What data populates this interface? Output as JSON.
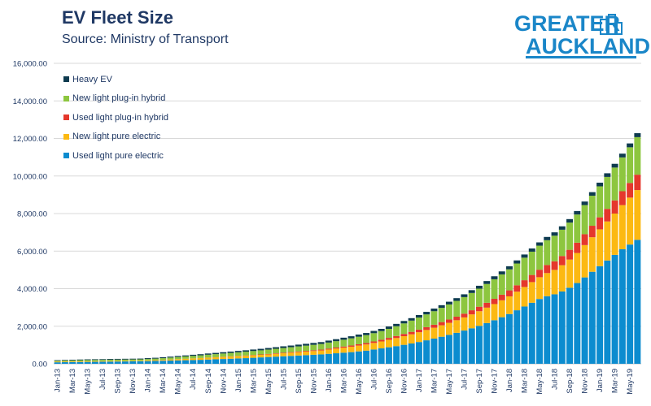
{
  "title": "EV Fleet Size",
  "subtitle": "Source: Ministry of Transport",
  "logo": {
    "line1": "GREATER",
    "line2": "AUCKLAND",
    "color": "#1a86c8"
  },
  "chart_data": {
    "type": "bar",
    "stacked": true,
    "ylim": [
      0,
      16000
    ],
    "yticks": [
      0,
      2000,
      4000,
      6000,
      8000,
      10000,
      12000,
      14000,
      16000
    ],
    "ytick_labels": [
      "0.00",
      "2,000.00",
      "4,000.00",
      "6,000.00",
      "8,000.00",
      "10,000.00",
      "12,000.00",
      "14,000.00",
      "16,000.00"
    ],
    "grid": true,
    "legend_position": "top-left",
    "categories": [
      "Jan-13",
      "Feb-13",
      "Mar-13",
      "Apr-13",
      "May-13",
      "Jun-13",
      "Jul-13",
      "Aug-13",
      "Sep-13",
      "Oct-13",
      "Nov-13",
      "Dec-13",
      "Jan-14",
      "Feb-14",
      "Mar-14",
      "Apr-14",
      "May-14",
      "Jun-14",
      "Jul-14",
      "Aug-14",
      "Sep-14",
      "Oct-14",
      "Nov-14",
      "Dec-14",
      "Jan-15",
      "Feb-15",
      "Mar-15",
      "Apr-15",
      "May-15",
      "Jun-15",
      "Jul-15",
      "Aug-15",
      "Sep-15",
      "Oct-15",
      "Nov-15",
      "Dec-15",
      "Jan-16",
      "Feb-16",
      "Mar-16",
      "Apr-16",
      "May-16",
      "Jun-16",
      "Jul-16",
      "Aug-16",
      "Sep-16",
      "Oct-16",
      "Nov-16",
      "Dec-16",
      "Jan-17",
      "Feb-17",
      "Mar-17",
      "Apr-17",
      "May-17",
      "Jun-17",
      "Jul-17",
      "Aug-17",
      "Sep-17",
      "Oct-17",
      "Nov-17",
      "Dec-17",
      "Jan-18",
      "Feb-18",
      "Mar-18",
      "Apr-18",
      "May-18",
      "Jun-18",
      "Jul-18",
      "Aug-18",
      "Sep-18",
      "Oct-18",
      "Nov-18",
      "Dec-18",
      "Jan-19",
      "Feb-19",
      "Mar-19",
      "Apr-19",
      "May-19",
      "Jun-19"
    ],
    "xtick_labels": [
      "Jan-13",
      "Mar-13",
      "May-13",
      "Jul-13",
      "Sep-13",
      "Nov-13",
      "Jan-14",
      "Mar-14",
      "May-14",
      "Jul-14",
      "Sep-14",
      "Nov-14",
      "Jan-15",
      "Mar-15",
      "May-15",
      "Jul-15",
      "Sep-15",
      "Nov-15",
      "Jan-16",
      "Mar-16",
      "May-16",
      "Jul-16",
      "Sep-16",
      "Nov-16",
      "Jan-17",
      "Mar-17",
      "May-17",
      "Jul-17",
      "Sep-17",
      "Nov-17",
      "Jan-18",
      "Mar-18",
      "May-18",
      "Jul-18",
      "Sep-18",
      "Nov-18",
      "Jan-19",
      "Mar-19",
      "May-19"
    ],
    "series": [
      {
        "name": "Used light pure electric",
        "color": "#0c8ccf",
        "values": [
          80,
          85,
          90,
          95,
          100,
          105,
          110,
          115,
          120,
          125,
          130,
          135,
          140,
          150,
          160,
          170,
          180,
          190,
          200,
          210,
          225,
          240,
          255,
          270,
          285,
          300,
          320,
          340,
          360,
          380,
          400,
          420,
          440,
          460,
          480,
          500,
          530,
          560,
          590,
          620,
          660,
          700,
          760,
          820,
          880,
          940,
          1010,
          1080,
          1160,
          1250,
          1340,
          1440,
          1540,
          1650,
          1770,
          1890,
          2020,
          2170,
          2320,
          2480,
          2650,
          2850,
          3050,
          3250,
          3450,
          3600,
          3700,
          3850,
          4050,
          4300,
          4600,
          4900,
          5200,
          5500,
          5800,
          6100,
          6350,
          6600
        ]
      },
      {
        "name": "New light pure electric",
        "color": "#fcb912",
        "values": [
          30,
          30,
          30,
          30,
          30,
          30,
          30,
          30,
          30,
          30,
          30,
          30,
          35,
          40,
          45,
          55,
          65,
          75,
          85,
          95,
          100,
          105,
          110,
          115,
          120,
          125,
          130,
          135,
          140,
          150,
          160,
          170,
          180,
          190,
          200,
          210,
          230,
          250,
          270,
          290,
          310,
          330,
          350,
          370,
          400,
          430,
          460,
          490,
          520,
          550,
          580,
          610,
          640,
          670,
          700,
          740,
          780,
          820,
          860,
          900,
          940,
          990,
          1040,
          1100,
          1160,
          1230,
          1300,
          1400,
          1500,
          1600,
          1720,
          1840,
          1960,
          2080,
          2200,
          2350,
          2500,
          2650
        ]
      },
      {
        "name": "Used light plug-in hybrid",
        "color": "#e5372c",
        "values": [
          2,
          2,
          2,
          2,
          2,
          2,
          2,
          2,
          2,
          2,
          2,
          2,
          5,
          5,
          5,
          5,
          5,
          5,
          5,
          5,
          8,
          10,
          12,
          14,
          16,
          18,
          20,
          22,
          25,
          28,
          30,
          32,
          35,
          38,
          40,
          45,
          50,
          55,
          60,
          65,
          70,
          75,
          80,
          90,
          100,
          110,
          120,
          130,
          140,
          150,
          160,
          170,
          180,
          190,
          200,
          220,
          240,
          260,
          280,
          300,
          320,
          340,
          360,
          380,
          400,
          430,
          460,
          490,
          520,
          550,
          580,
          610,
          640,
          670,
          700,
          740,
          780,
          820
        ]
      },
      {
        "name": "New light plug-in hybrid",
        "color": "#8dc63f",
        "values": [
          50,
          55,
          60,
          65,
          70,
          70,
          70,
          70,
          70,
          70,
          70,
          70,
          75,
          80,
          90,
          100,
          110,
          120,
          130,
          140,
          150,
          160,
          170,
          180,
          190,
          200,
          210,
          220,
          230,
          240,
          250,
          260,
          270,
          280,
          290,
          300,
          320,
          340,
          360,
          380,
          400,
          420,
          440,
          460,
          480,
          520,
          560,
          600,
          640,
          680,
          720,
          760,
          800,
          840,
          880,
          920,
          960,
          1000,
          1040,
          1080,
          1120,
          1160,
          1200,
          1240,
          1280,
          1320,
          1360,
          1400,
          1450,
          1500,
          1550,
          1600,
          1650,
          1700,
          1750,
          1800,
          1900,
          2000
        ]
      },
      {
        "name": "Heavy EV",
        "color": "#0e3b4f",
        "values": [
          30,
          30,
          35,
          35,
          35,
          35,
          35,
          40,
          40,
          40,
          40,
          40,
          45,
          45,
          50,
          50,
          55,
          55,
          60,
          60,
          65,
          65,
          70,
          70,
          75,
          75,
          80,
          80,
          85,
          85,
          90,
          90,
          95,
          95,
          100,
          100,
          105,
          105,
          110,
          110,
          115,
          115,
          120,
          120,
          125,
          125,
          130,
          130,
          135,
          135,
          140,
          140,
          145,
          145,
          150,
          150,
          155,
          155,
          160,
          160,
          165,
          165,
          170,
          170,
          175,
          175,
          180,
          180,
          185,
          185,
          190,
          190,
          195,
          195,
          200,
          200,
          205,
          210
        ]
      }
    ]
  }
}
